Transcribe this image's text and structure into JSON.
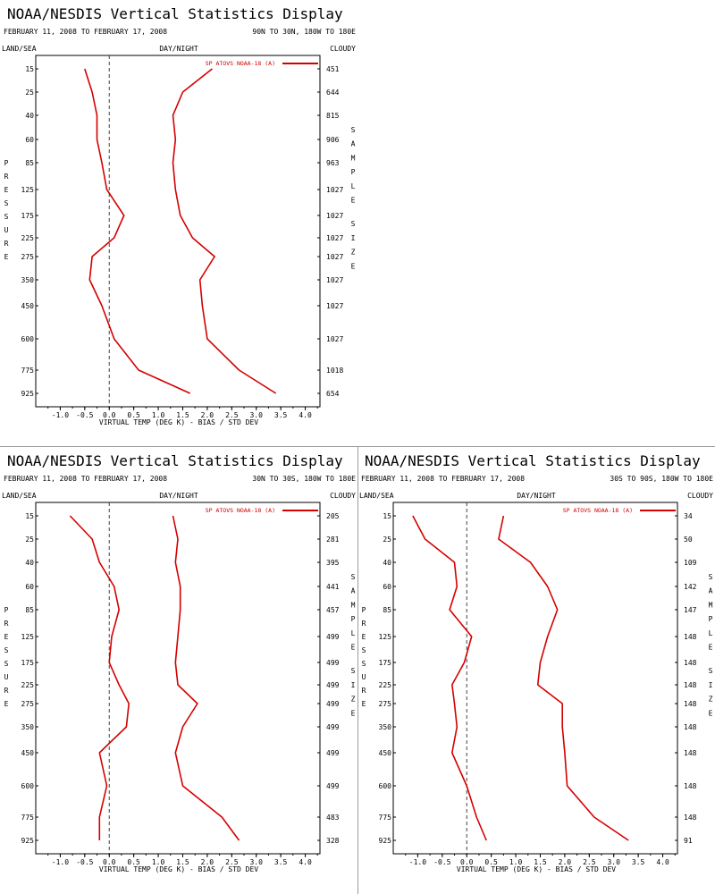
{
  "header": {
    "title": "NOAA/NESDIS Vertical Statistics Display",
    "date_range": "FEBRUARY 11, 2008 TO FEBRUARY 17, 2008",
    "col_land_sea": "LAND/SEA",
    "col_day_night": "DAY/NIGHT",
    "col_cloudy": "CLOUDY",
    "pressure_label": "PRESSURE",
    "sample_size_label": "SAMPLE SIZE",
    "xlabel": "VIRTUAL TEMP (DEG K) - BIAS / STD DEV"
  },
  "colors": {
    "series": "#d40000",
    "zero_line": "#444444",
    "text": "#000000",
    "divider": "#9a9a9a"
  },
  "chart_data": [
    {
      "type": "line",
      "region": "90N TO 30N, 180W TO 180E",
      "legend": "SP ATOVS NOAA-18 (A)",
      "legend_placement": "top-right",
      "ylabel": "PRESSURE",
      "xlabel": "VIRTUAL TEMP (DEG K) - BIAS / STD DEV",
      "pressure_levels": [
        15,
        25,
        40,
        60,
        85,
        125,
        175,
        225,
        275,
        350,
        450,
        600,
        775,
        925
      ],
      "x_ticks": [
        "-1.0",
        "-0.5",
        "0.0",
        "0.5",
        "1.0",
        "1.5",
        "2.0",
        "2.5",
        "3.0",
        "3.5",
        "4.0"
      ],
      "xlim": [
        -1.5,
        4.3
      ],
      "sample_size": [
        "451",
        "644",
        "815",
        "906",
        "963",
        "1027",
        "1027",
        "1027",
        "1027",
        "1027",
        "1027",
        "1027",
        "1018",
        "654"
      ],
      "series": [
        {
          "name": "BIAS",
          "values": [
            -0.5,
            -0.35,
            -0.25,
            -0.25,
            -0.15,
            -0.05,
            0.3,
            0.1,
            -0.35,
            -0.4,
            -0.15,
            0.1,
            0.6,
            1.65
          ]
        },
        {
          "name": "STD DEV",
          "values": [
            2.1,
            1.5,
            1.3,
            1.35,
            1.3,
            1.35,
            1.45,
            1.7,
            2.15,
            1.85,
            1.9,
            2.0,
            2.65,
            3.4
          ]
        }
      ]
    },
    {
      "type": "line",
      "region": "30N TO 30S, 180W TO 180E",
      "legend": "SP ATOVS NOAA-18 (A)",
      "legend_placement": "top-right",
      "ylabel": "PRESSURE",
      "xlabel": "VIRTUAL TEMP (DEG K) - BIAS / STD DEV",
      "pressure_levels": [
        15,
        25,
        40,
        60,
        85,
        125,
        175,
        225,
        275,
        350,
        450,
        600,
        775,
        925
      ],
      "x_ticks": [
        "-1.0",
        "-0.5",
        "0.0",
        "0.5",
        "1.0",
        "1.5",
        "2.0",
        "2.5",
        "3.0",
        "3.5",
        "4.0"
      ],
      "xlim": [
        -1.5,
        4.3
      ],
      "sample_size": [
        "205",
        "281",
        "395",
        "441",
        "457",
        "499",
        "499",
        "499",
        "499",
        "499",
        "499",
        "499",
        "483",
        "328"
      ],
      "series": [
        {
          "name": "BIAS",
          "values": [
            -0.8,
            -0.35,
            -0.2,
            0.1,
            0.2,
            0.05,
            0.0,
            0.2,
            0.4,
            0.35,
            -0.2,
            -0.05,
            -0.2,
            -0.2
          ]
        },
        {
          "name": "STD DEV",
          "values": [
            1.3,
            1.4,
            1.35,
            1.45,
            1.45,
            1.4,
            1.35,
            1.4,
            1.8,
            1.5,
            1.35,
            1.5,
            2.3,
            2.65
          ]
        }
      ]
    },
    {
      "type": "line",
      "region": "30S TO 90S, 180W TO 180E",
      "legend": "SP ATOVS NOAA-18 (A)",
      "legend_placement": "top-right",
      "ylabel": "PRESSURE",
      "xlabel": "VIRTUAL TEMP (DEG K) - BIAS / STD DEV",
      "pressure_levels": [
        15,
        25,
        40,
        60,
        85,
        125,
        175,
        225,
        275,
        350,
        450,
        600,
        775,
        925
      ],
      "x_ticks": [
        "-1.0",
        "-0.5",
        "0.0",
        "0.5",
        "1.0",
        "1.5",
        "2.0",
        "2.5",
        "3.0",
        "3.5",
        "4.0"
      ],
      "xlim": [
        -1.5,
        4.3
      ],
      "sample_size": [
        "34",
        "50",
        "109",
        "142",
        "147",
        "148",
        "148",
        "148",
        "148",
        "148",
        "148",
        "148",
        "148",
        "91"
      ],
      "series": [
        {
          "name": "BIAS",
          "values": [
            -1.1,
            -0.85,
            -0.25,
            -0.2,
            -0.35,
            0.1,
            -0.05,
            -0.3,
            -0.25,
            -0.2,
            -0.3,
            0.0,
            0.2,
            0.4
          ]
        },
        {
          "name": "STD DEV",
          "values": [
            0.75,
            0.65,
            1.3,
            1.65,
            1.85,
            1.65,
            1.5,
            1.45,
            1.95,
            1.95,
            2.0,
            2.05,
            2.6,
            3.3
          ]
        }
      ]
    }
  ]
}
